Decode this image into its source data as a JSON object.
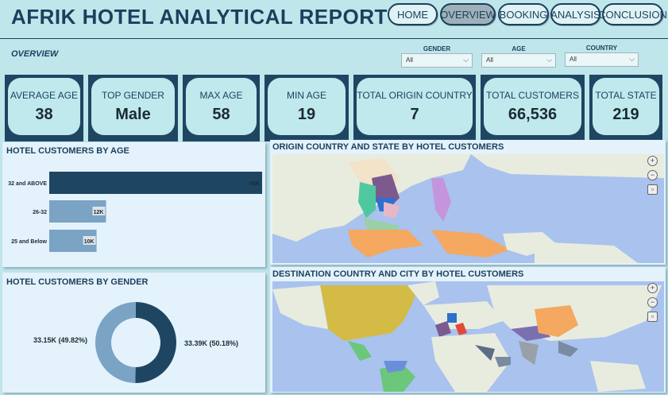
{
  "header": {
    "title": "AFRIK HOTEL ANALYTICAL REPORT",
    "nav": [
      "HOME",
      "OVERVIEW",
      "BOOKING",
      "ANALYSIS",
      "CONCLUSION"
    ],
    "active_nav": "OVERVIEW"
  },
  "section_label": "OVERVIEW",
  "filters": {
    "gender": {
      "label": "GENDER",
      "value": "All"
    },
    "age": {
      "label": "AGE",
      "value": "All"
    },
    "country": {
      "label": "COUNTRY",
      "value": "All"
    }
  },
  "kpis": [
    {
      "label": "AVERAGE AGE",
      "value": "38"
    },
    {
      "label": "TOP GENDER",
      "value": "Male"
    },
    {
      "label": "MAX AGE",
      "value": "58"
    },
    {
      "label": "MIN AGE",
      "value": "19"
    },
    {
      "label": "TOTAL ORIGIN COUNTRY",
      "value": "7"
    },
    {
      "label": "TOTAL CUSTOMERS",
      "value": "66,536"
    },
    {
      "label": "TOTAL STATE",
      "value": "219"
    }
  ],
  "age_chart": {
    "title": "HOTEL CUSTOMERS BY AGE"
  },
  "gender_chart": {
    "title": "HOTEL CUSTOMERS BY GENDER"
  },
  "chart_data": [
    {
      "type": "bar",
      "title": "HOTEL CUSTOMERS BY AGE",
      "orientation": "horizontal",
      "categories": [
        "32 and ABOVE",
        "26-32",
        "25 and Below"
      ],
      "values": [
        45000,
        12000,
        10000
      ],
      "data_labels": [
        "45K",
        "12K",
        "10K"
      ],
      "colors": [
        "#1e4663",
        "#7aa3c4",
        "#7aa3c4"
      ]
    },
    {
      "type": "pie",
      "title": "HOTEL CUSTOMERS BY GENDER",
      "donut": true,
      "values": [
        33390,
        33150
      ],
      "data_labels": [
        "33.39K (50.18%)",
        "33.15K (49.82%)"
      ],
      "colors": [
        "#1e4663",
        "#7aa3c4"
      ]
    }
  ],
  "origin_map": {
    "title": "ORIGIN COUNTRY AND STATE BY HOTEL CUSTOMERS"
  },
  "destination_map": {
    "title": "DESTINATION COUNTRY AND CITY BY HOTEL CUSTOMERS"
  },
  "colors": {
    "navy": "#1e4663",
    "light_blue": "#7aa3c4",
    "background": "#bfe6ea",
    "ocean": "#a9c2ee"
  }
}
